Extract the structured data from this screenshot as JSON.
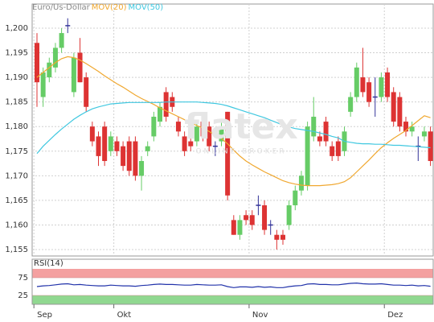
{
  "chart_data": [
    {
      "type": "candlestick",
      "watermark": "flatex",
      "watermark_sub": "ONLINE BROKER",
      "categories": [
        "Sep",
        null,
        null,
        null,
        null,
        null,
        null,
        null,
        null,
        null,
        null,
        null,
        null,
        "Okt",
        null,
        null,
        null,
        null,
        null,
        null,
        null,
        null,
        null,
        null,
        null,
        null,
        null,
        null,
        null,
        null,
        null,
        null,
        null,
        null,
        null,
        "Nov",
        null,
        null,
        null,
        null,
        null,
        null,
        null,
        null,
        null,
        null,
        null,
        null,
        null,
        null,
        null,
        null,
        null,
        null,
        null,
        null,
        null,
        "Dez",
        null,
        null,
        null,
        null,
        null,
        null,
        null
      ],
      "ylim": [
        1.1537,
        1.2049
      ],
      "yticks": [
        {
          "value": 1.155,
          "label": "1,155"
        },
        {
          "value": 1.16,
          "label": "1,160"
        },
        {
          "value": 1.165,
          "label": "1,165"
        },
        {
          "value": 1.17,
          "label": "1,170"
        },
        {
          "value": 1.175,
          "label": "1,175"
        },
        {
          "value": 1.18,
          "label": "1,180"
        },
        {
          "value": 1.185,
          "label": "1,185"
        },
        {
          "value": 1.19,
          "label": "1,190"
        },
        {
          "value": 1.195,
          "label": "1,195"
        },
        {
          "value": 1.2,
          "label": "1,200"
        }
      ],
      "grid": true,
      "up_color": "#66cc66",
      "down_color": "#dd3333",
      "flat_color": "#333399",
      "ohlc": {
        "name": "Euro/Us-Dollar",
        "color": "#888888",
        "open": [
          1.197,
          1.186,
          1.19,
          1.192,
          1.196,
          1.2005,
          1.187,
          1.195,
          1.19,
          1.18,
          1.178,
          1.18,
          1.175,
          1.177,
          1.176,
          1.177,
          1.177,
          1.17,
          1.175,
          1.178,
          1.181,
          1.187,
          1.186,
          1.181,
          1.178,
          1.177,
          1.177,
          1.181,
          1.18,
          1.176,
          1.177,
          1.183,
          1.161,
          1.158,
          1.162,
          1.162,
          1.164,
          1.164,
          1.16,
          1.158,
          1.158,
          1.16,
          1.164,
          1.167,
          1.168,
          1.178,
          1.178,
          1.181,
          1.176,
          1.177,
          1.175,
          1.183,
          1.186,
          1.19,
          1.189,
          1.186,
          1.186,
          1.191,
          1.187,
          1.186,
          1.181,
          1.179,
          1.176,
          1.178,
          1.179
        ],
        "high": [
          1.199,
          1.192,
          1.194,
          1.197,
          1.2,
          1.202,
          1.195,
          1.198,
          1.191,
          1.181,
          1.179,
          1.181,
          1.179,
          1.178,
          1.177,
          1.178,
          1.178,
          1.174,
          1.177,
          1.183,
          1.185,
          1.188,
          1.187,
          1.182,
          1.179,
          1.178,
          1.181,
          1.182,
          1.181,
          1.177,
          1.181,
          1.183,
          1.162,
          1.162,
          1.163,
          1.163,
          1.166,
          1.165,
          1.161,
          1.159,
          1.159,
          1.165,
          1.168,
          1.171,
          1.181,
          1.186,
          1.179,
          1.182,
          1.177,
          1.178,
          1.18,
          1.187,
          1.193,
          1.196,
          1.19,
          1.19,
          1.191,
          1.192,
          1.188,
          1.187,
          1.182,
          1.181,
          1.178,
          1.18,
          1.18
        ],
        "low": [
          1.184,
          1.184,
          1.189,
          1.191,
          1.195,
          1.199,
          1.186,
          1.189,
          1.183,
          1.176,
          1.172,
          1.172,
          1.174,
          1.174,
          1.171,
          1.17,
          1.169,
          1.167,
          1.174,
          1.177,
          1.18,
          1.181,
          1.183,
          1.178,
          1.174,
          1.175,
          1.176,
          1.177,
          1.175,
          1.174,
          1.176,
          1.165,
          1.158,
          1.157,
          1.16,
          1.159,
          1.162,
          1.158,
          1.158,
          1.155,
          1.156,
          1.159,
          1.163,
          1.166,
          1.167,
          1.177,
          1.176,
          1.176,
          1.173,
          1.173,
          1.174,
          1.182,
          1.185,
          1.186,
          1.184,
          1.182,
          1.185,
          1.185,
          1.18,
          1.179,
          1.178,
          1.178,
          1.173,
          1.177,
          1.172
        ],
        "close": [
          1.189,
          1.191,
          1.193,
          1.196,
          1.199,
          1.2005,
          1.194,
          1.189,
          1.184,
          1.177,
          1.174,
          1.173,
          1.178,
          1.175,
          1.172,
          1.171,
          1.17,
          1.173,
          1.176,
          1.182,
          1.184,
          1.182,
          1.184,
          1.179,
          1.175,
          1.176,
          1.18,
          1.178,
          1.176,
          1.176,
          1.18,
          1.166,
          1.158,
          1.161,
          1.161,
          1.16,
          1.164,
          1.159,
          1.16,
          1.157,
          1.157,
          1.164,
          1.167,
          1.17,
          1.18,
          1.182,
          1.177,
          1.177,
          1.174,
          1.174,
          1.179,
          1.186,
          1.192,
          1.187,
          1.185,
          1.186,
          1.19,
          1.186,
          1.181,
          1.18,
          1.179,
          1.18,
          1.176,
          1.179,
          1.173
        ]
      },
      "series": [
        {
          "name": "MOV(20)",
          "color": "#f0a830",
          "values": [
            1.19,
            1.191,
            1.192,
            1.193,
            1.1938,
            1.1942,
            1.194,
            1.1935,
            1.1928,
            1.192,
            1.1912,
            1.1903,
            1.1895,
            1.1887,
            1.188,
            1.1872,
            1.1864,
            1.1857,
            1.1851,
            1.1845,
            1.1838,
            1.1832,
            1.1826,
            1.182,
            1.1814,
            1.1808,
            1.1802,
            1.1797,
            1.179,
            1.1783,
            1.1776,
            1.1765,
            1.1752,
            1.174,
            1.173,
            1.1722,
            1.1715,
            1.1708,
            1.1702,
            1.1696,
            1.169,
            1.1686,
            1.1683,
            1.1681,
            1.168,
            1.168,
            1.168,
            1.1681,
            1.1682,
            1.1684,
            1.1688,
            1.1696,
            1.1708,
            1.172,
            1.1732,
            1.1745,
            1.1757,
            1.1767,
            1.1776,
            1.1784,
            1.1792,
            1.1802,
            1.1812,
            1.1822,
            1.1818
          ]
        },
        {
          "name": "MOV(50)",
          "color": "#40c8e0",
          "values": [
            1.1745,
            1.176,
            1.1772,
            1.1784,
            1.1795,
            1.1805,
            1.1815,
            1.1823,
            1.183,
            1.1836,
            1.184,
            1.1843,
            1.1846,
            1.1847,
            1.1848,
            1.1849,
            1.1849,
            1.1849,
            1.1849,
            1.1849,
            1.1849,
            1.185,
            1.185,
            1.185,
            1.185,
            1.185,
            1.185,
            1.1849,
            1.1848,
            1.1847,
            1.1845,
            1.1842,
            1.1838,
            1.1834,
            1.183,
            1.1826,
            1.1822,
            1.1818,
            1.1813,
            1.1808,
            1.1803,
            1.1799,
            1.1796,
            1.1794,
            1.1792,
            1.179,
            1.1787,
            1.1784,
            1.178,
            1.1777,
            1.177,
            1.1768,
            1.1766,
            1.1765,
            1.1765,
            1.1764,
            1.1764,
            1.1763,
            1.1762,
            1.1762,
            1.1761,
            1.176,
            1.1759,
            1.1758,
            1.1757
          ]
        }
      ]
    },
    {
      "type": "line",
      "title": "RSI(14)",
      "ylim": [
        0,
        100
      ],
      "yticks": [
        25,
        75
      ],
      "high_band_color": "#f4a0a0",
      "low_band_color": "#90d890",
      "series": [
        {
          "name": "RSI(14)",
          "color": "#2233aa",
          "values": [
            50,
            52,
            53,
            55,
            57,
            58,
            55,
            56,
            54,
            53,
            52,
            52,
            54,
            53,
            52,
            52,
            51,
            53,
            54,
            56,
            57,
            56,
            56,
            55,
            54,
            54,
            56,
            55,
            54,
            54,
            55,
            50,
            47,
            49,
            49,
            48,
            50,
            48,
            49,
            47,
            47,
            50,
            52,
            53,
            57,
            58,
            56,
            56,
            55,
            55,
            57,
            59,
            60,
            58,
            57,
            57,
            58,
            56,
            54,
            54,
            53,
            54,
            52,
            53,
            51
          ]
        }
      ]
    }
  ]
}
